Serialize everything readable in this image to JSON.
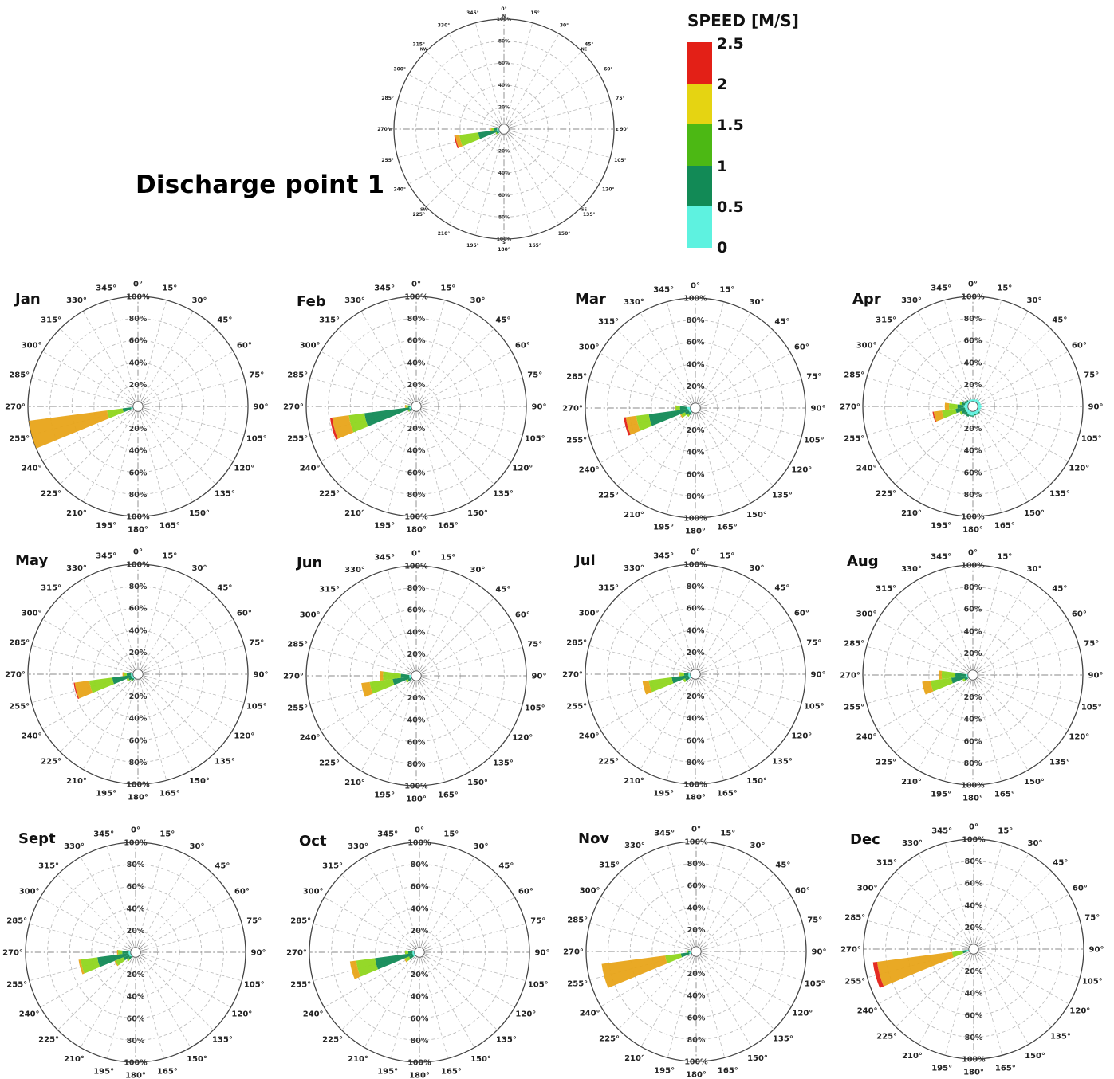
{
  "main_title": "Discharge point 1",
  "legend": {
    "title": "SPEED [M/S]",
    "bins": [
      {
        "label": "2.5",
        "color": "#e32017"
      },
      {
        "label": "2",
        "color": "#e5d412"
      },
      {
        "label": "1.5",
        "color": "#4cb814"
      },
      {
        "label": "1",
        "color": "#128a56"
      },
      {
        "label": "0.5",
        "color": "#5ef2e0"
      },
      {
        "label": "0",
        "color": ""
      }
    ]
  },
  "chart_data": [
    {
      "type": "polar-bar",
      "title": "",
      "direction_labels": [
        "0°",
        "15°",
        "30°",
        "45°",
        "60°",
        "75°",
        "90°",
        "105°",
        "120°",
        "135°",
        "150°",
        "165°",
        "180°",
        "195°",
        "210°",
        "225°",
        "240°",
        "255°",
        "270°",
        "285°",
        "300°",
        "315°",
        "330°",
        "345°"
      ],
      "compass_labels": {
        "0°": "N",
        "45°": "NE",
        "90°": "E",
        "135°": "SE",
        "180°": "S",
        "225°": "SW",
        "270°": "W",
        "315°": "NW"
      },
      "radial_labels": [
        "20%",
        "40%",
        "60%",
        "80%",
        "100%"
      ],
      "sectors": [
        {
          "direction": 255,
          "cumulative": [
            2,
            20,
            38,
            42,
            43
          ]
        },
        {
          "direction": 270,
          "cumulative": [
            2,
            5,
            7,
            8,
            8
          ]
        },
        {
          "direction": 240,
          "cumulative": [
            1,
            3,
            4,
            4,
            4
          ]
        }
      ]
    },
    {
      "type": "polar-bar",
      "title": "Jan",
      "direction_labels": [
        "0°",
        "15°",
        "30°",
        "45°",
        "60°",
        "75°",
        "90°",
        "105°",
        "120°",
        "135°",
        "150°",
        "165°",
        "180°",
        "195°",
        "210°",
        "225°",
        "240°",
        "255°",
        "270°",
        "285°",
        "300°",
        "315°",
        "330°",
        "345°"
      ],
      "radial_labels": [
        "20%",
        "40%",
        "60%",
        "80%",
        "100%"
      ],
      "sectors": [
        {
          "direction": 255,
          "cumulative": [
            2,
            10,
            25,
            100,
            100
          ]
        }
      ]
    },
    {
      "type": "polar-bar",
      "title": "Feb",
      "direction_labels": [
        "0°",
        "15°",
        "30°",
        "45°",
        "60°",
        "75°",
        "90°",
        "105°",
        "120°",
        "135°",
        "150°",
        "165°",
        "180°",
        "195°",
        "210°",
        "225°",
        "240°",
        "255°",
        "270°",
        "285°",
        "300°",
        "315°",
        "330°",
        "345°"
      ],
      "radial_labels": [
        "20%",
        "40%",
        "60%",
        "80%",
        "100%"
      ],
      "sectors": [
        {
          "direction": 255,
          "cumulative": [
            2,
            45,
            60,
            76,
            78
          ]
        },
        {
          "direction": 270,
          "cumulative": [
            1,
            3,
            5,
            6,
            6
          ]
        },
        {
          "direction": 240,
          "cumulative": [
            1,
            3,
            4,
            4,
            4
          ]
        }
      ]
    },
    {
      "type": "polar-bar",
      "title": "Mar",
      "direction_labels": [
        "0°",
        "15°",
        "30°",
        "45°",
        "60°",
        "75°",
        "90°",
        "105°",
        "120°",
        "135°",
        "150°",
        "165°",
        "180°",
        "195°",
        "210°",
        "225°",
        "240°",
        "255°",
        "270°",
        "285°",
        "300°",
        "315°",
        "330°",
        "345°"
      ],
      "radial_labels": [
        "20%",
        "40%",
        "60%",
        "80%",
        "100%"
      ],
      "sectors": [
        {
          "direction": 255,
          "cumulative": [
            2,
            40,
            52,
            62,
            64
          ]
        },
        {
          "direction": 270,
          "cumulative": [
            3,
            10,
            14,
            15,
            15
          ]
        },
        {
          "direction": 240,
          "cumulative": [
            2,
            6,
            10,
            11,
            11
          ]
        },
        {
          "direction": 225,
          "cumulative": [
            1,
            4,
            6,
            6,
            6
          ]
        }
      ]
    },
    {
      "type": "polar-bar",
      "title": "Apr",
      "direction_labels": [
        "0°",
        "15°",
        "30°",
        "45°",
        "60°",
        "75°",
        "90°",
        "105°",
        "120°",
        "135°",
        "150°",
        "165°",
        "180°",
        "195°",
        "210°",
        "225°",
        "240°",
        "255°",
        "270°",
        "285°",
        "300°",
        "315°",
        "330°",
        "345°"
      ],
      "radial_labels": [
        "20%",
        "40%",
        "60%",
        "80%",
        "100%"
      ],
      "sectors": [
        {
          "direction": 255,
          "cumulative": [
            3,
            12,
            25,
            33,
            34
          ]
        },
        {
          "direction": 270,
          "cumulative": [
            4,
            10,
            18,
            22,
            22
          ]
        },
        {
          "direction": 285,
          "cumulative": [
            3,
            6,
            8,
            8,
            8
          ]
        },
        {
          "direction": 240,
          "cumulative": [
            3,
            7,
            9,
            9,
            9
          ]
        },
        {
          "direction": 225,
          "cumulative": [
            3,
            6,
            6,
            6,
            6
          ]
        },
        {
          "direction": 210,
          "cumulative": [
            4,
            6,
            6,
            6,
            6
          ]
        },
        {
          "direction": 195,
          "cumulative": [
            4,
            5,
            5,
            5,
            5
          ]
        },
        {
          "direction": 180,
          "cumulative": [
            4,
            5,
            5,
            5,
            5
          ]
        },
        {
          "direction": 165,
          "cumulative": [
            3,
            4,
            4,
            4,
            4
          ]
        },
        {
          "direction": 150,
          "cumulative": [
            3,
            4,
            4,
            4,
            4
          ]
        },
        {
          "direction": 135,
          "cumulative": [
            3,
            4,
            4,
            4,
            4
          ]
        },
        {
          "direction": 120,
          "cumulative": [
            3,
            3,
            3,
            3,
            3
          ]
        },
        {
          "direction": 105,
          "cumulative": [
            3,
            3,
            3,
            3,
            3
          ]
        },
        {
          "direction": 90,
          "cumulative": [
            4,
            4,
            4,
            4,
            4
          ]
        },
        {
          "direction": 75,
          "cumulative": [
            3,
            3,
            3,
            3,
            3
          ]
        },
        {
          "direction": 60,
          "cumulative": [
            3,
            3,
            3,
            3,
            3
          ]
        },
        {
          "direction": 45,
          "cumulative": [
            3,
            3,
            3,
            3,
            3
          ]
        },
        {
          "direction": 30,
          "cumulative": [
            3,
            3,
            3,
            3,
            3
          ]
        },
        {
          "direction": 15,
          "cumulative": [
            2,
            2,
            2,
            2,
            2
          ]
        },
        {
          "direction": 0,
          "cumulative": [
            2,
            2,
            2,
            2,
            2
          ]
        },
        {
          "direction": 345,
          "cumulative": [
            2,
            2,
            2,
            2,
            2
          ]
        },
        {
          "direction": 330,
          "cumulative": [
            2,
            2,
            2,
            2,
            2
          ]
        },
        {
          "direction": 315,
          "cumulative": [
            2,
            3,
            3,
            3,
            3
          ]
        },
        {
          "direction": 300,
          "cumulative": [
            2,
            4,
            4,
            4,
            4
          ]
        }
      ]
    },
    {
      "type": "polar-bar",
      "title": "May",
      "direction_labels": [
        "0°",
        "15°",
        "30°",
        "45°",
        "60°",
        "75°",
        "90°",
        "105°",
        "120°",
        "135°",
        "150°",
        "165°",
        "180°",
        "195°",
        "210°",
        "225°",
        "240°",
        "255°",
        "270°",
        "285°",
        "300°",
        "315°",
        "330°",
        "345°"
      ],
      "radial_labels": [
        "20%",
        "40%",
        "60%",
        "80%",
        "100%"
      ],
      "sectors": [
        {
          "direction": 255,
          "cumulative": [
            2,
            20,
            42,
            56,
            57
          ]
        },
        {
          "direction": 270,
          "cumulative": [
            2,
            6,
            9,
            10,
            10
          ]
        },
        {
          "direction": 240,
          "cumulative": [
            2,
            5,
            7,
            7,
            7
          ]
        },
        {
          "direction": 225,
          "cumulative": [
            1,
            3,
            4,
            4,
            4
          ]
        }
      ]
    },
    {
      "type": "polar-bar",
      "title": "Jun",
      "direction_labels": [
        "0°",
        "15°",
        "30°",
        "45°",
        "60°",
        "75°",
        "90°",
        "105°",
        "120°",
        "135°",
        "150°",
        "165°",
        "180°",
        "195°",
        "210°",
        "225°",
        "240°",
        "255°",
        "270°",
        "285°",
        "300°",
        "315°",
        "330°",
        "345°"
      ],
      "radial_labels": [
        "20%",
        "40%",
        "60%",
        "80%",
        "100%"
      ],
      "sectors": [
        {
          "direction": 255,
          "cumulative": [
            2,
            18,
            40,
            48,
            48
          ]
        },
        {
          "direction": 270,
          "cumulative": [
            2,
            10,
            27,
            30,
            30
          ]
        },
        {
          "direction": 240,
          "cumulative": [
            1,
            4,
            6,
            6,
            6
          ]
        }
      ]
    },
    {
      "type": "polar-bar",
      "title": "Jul",
      "direction_labels": [
        "0°",
        "15°",
        "30°",
        "45°",
        "60°",
        "75°",
        "90°",
        "105°",
        "120°",
        "135°",
        "150°",
        "165°",
        "180°",
        "195°",
        "210°",
        "225°",
        "240°",
        "255°",
        "270°",
        "285°",
        "300°",
        "315°",
        "330°",
        "345°"
      ],
      "radial_labels": [
        "20%",
        "40%",
        "60%",
        "80%",
        "100%"
      ],
      "sectors": [
        {
          "direction": 255,
          "cumulative": [
            2,
            18,
            40,
            46,
            46
          ]
        },
        {
          "direction": 270,
          "cumulative": [
            2,
            6,
            10,
            11,
            11
          ]
        },
        {
          "direction": 240,
          "cumulative": [
            2,
            6,
            8,
            8,
            8
          ]
        }
      ]
    },
    {
      "type": "polar-bar",
      "title": "Aug",
      "direction_labels": [
        "0°",
        "15°",
        "30°",
        "45°",
        "60°",
        "75°",
        "90°",
        "105°",
        "120°",
        "135°",
        "150°",
        "165°",
        "180°",
        "195°",
        "210°",
        "225°",
        "240°",
        "255°",
        "270°",
        "285°",
        "300°",
        "315°",
        "330°",
        "345°"
      ],
      "radial_labels": [
        "20%",
        "40%",
        "60%",
        "80%",
        "100%"
      ],
      "sectors": [
        {
          "direction": 255,
          "cumulative": [
            2,
            16,
            36,
            44,
            44
          ]
        },
        {
          "direction": 270,
          "cumulative": [
            2,
            12,
            25,
            28,
            28
          ]
        },
        {
          "direction": 240,
          "cumulative": [
            1,
            4,
            6,
            6,
            6
          ]
        }
      ]
    },
    {
      "type": "polar-bar",
      "title": "Sept",
      "direction_labels": [
        "0°",
        "15°",
        "30°",
        "45°",
        "60°",
        "75°",
        "90°",
        "105°",
        "120°",
        "135°",
        "150°",
        "165°",
        "180°",
        "195°",
        "210°",
        "225°",
        "240°",
        "255°",
        "270°",
        "285°",
        "300°",
        "315°",
        "330°",
        "345°"
      ],
      "radial_labels": [
        "20%",
        "40%",
        "60%",
        "80%",
        "100%"
      ],
      "sectors": [
        {
          "direction": 255,
          "cumulative": [
            2,
            32,
            48,
            50,
            50
          ]
        },
        {
          "direction": 270,
          "cumulative": [
            2,
            8,
            12,
            13,
            13
          ]
        },
        {
          "direction": 240,
          "cumulative": [
            2,
            8,
            16,
            17,
            17
          ]
        },
        {
          "direction": 225,
          "cumulative": [
            1,
            4,
            6,
            6,
            6
          ]
        }
      ]
    },
    {
      "type": "polar-bar",
      "title": "Oct",
      "direction_labels": [
        "0°",
        "15°",
        "30°",
        "45°",
        "60°",
        "75°",
        "90°",
        "105°",
        "120°",
        "135°",
        "150°",
        "165°",
        "180°",
        "195°",
        "210°",
        "225°",
        "240°",
        "255°",
        "270°",
        "285°",
        "300°",
        "315°",
        "330°",
        "345°"
      ],
      "radial_labels": [
        "20%",
        "40%",
        "60%",
        "80%",
        "100%"
      ],
      "sectors": [
        {
          "direction": 255,
          "cumulative": [
            2,
            38,
            56,
            62,
            62
          ]
        },
        {
          "direction": 270,
          "cumulative": [
            2,
            6,
            9,
            9,
            9
          ]
        },
        {
          "direction": 240,
          "cumulative": [
            2,
            6,
            10,
            11,
            11
          ]
        }
      ]
    },
    {
      "type": "polar-bar",
      "title": "Nov",
      "direction_labels": [
        "0°",
        "15°",
        "30°",
        "45°",
        "60°",
        "75°",
        "90°",
        "105°",
        "120°",
        "135°",
        "150°",
        "165°",
        "180°",
        "195°",
        "210°",
        "225°",
        "240°",
        "255°",
        "270°",
        "285°",
        "300°",
        "315°",
        "330°",
        "345°"
      ],
      "radial_labels": [
        "20%",
        "40%",
        "60%",
        "80%",
        "100%"
      ],
      "sectors": [
        {
          "direction": 255,
          "cumulative": [
            2,
            10,
            25,
            86,
            86
          ]
        },
        {
          "direction": 270,
          "cumulative": [
            1,
            3,
            4,
            4,
            4
          ]
        }
      ]
    },
    {
      "type": "polar-bar",
      "title": "Dec",
      "direction_labels": [
        "0°",
        "15°",
        "30°",
        "45°",
        "60°",
        "75°",
        "90°",
        "105°",
        "120°",
        "135°",
        "150°",
        "165°",
        "180°",
        "195°",
        "210°",
        "225°",
        "240°",
        "255°",
        "270°",
        "285°",
        "300°",
        "315°",
        "330°",
        "345°"
      ],
      "radial_labels": [
        "20%",
        "40%",
        "60%",
        "80%",
        "100%"
      ],
      "sectors": [
        {
          "direction": 255,
          "cumulative": [
            2,
            6,
            16,
            88,
            92
          ]
        }
      ]
    }
  ]
}
